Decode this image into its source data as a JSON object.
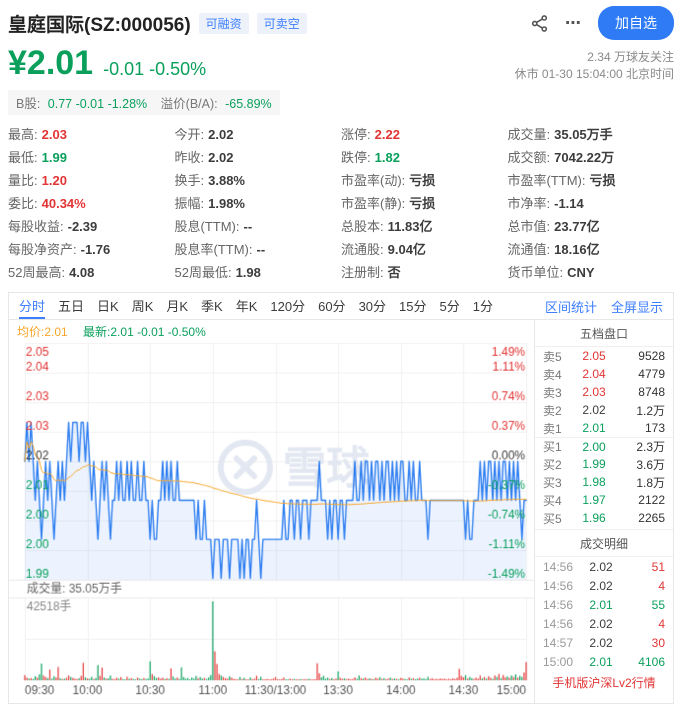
{
  "colors": {
    "up": "#e23434",
    "down": "#0aa05c",
    "flat": "#3c3c3c",
    "accent": "#3d7eff",
    "orange": "#f7a62a",
    "line_blue": "#2c7df0",
    "area_blue": "rgba(44,125,240,0.09)",
    "grid": "#f1f1f1",
    "text_gray": "#666666",
    "text_light": "#8a8a8a",
    "watermark": "#e2e7f1"
  },
  "header": {
    "title": "皇庭国际(SZ:000056)",
    "badges": [
      "可融资",
      "可卖空"
    ],
    "share_icon": "share-icon",
    "more_icon": "⋯",
    "follow_button": "加自选"
  },
  "price_block": {
    "price": "¥2.01",
    "change": "-0.01 -0.50%",
    "followers": "2.34 万球友关注",
    "status_line": "休市 01-30 15:04:00 北京时间"
  },
  "b_share": {
    "label": "B股:",
    "values": "0.77  -0.01  -1.28%",
    "premium_label": "溢价(B/A):",
    "premium_value": "-65.89%"
  },
  "stats": {
    "columns": [
      [
        {
          "label": "最高:",
          "value": "2.03",
          "c": "up"
        },
        {
          "label": "最低:",
          "value": "1.99",
          "c": "down"
        },
        {
          "label": "量比:",
          "value": "1.20",
          "c": "up"
        },
        {
          "label": "委比:",
          "value": "40.34%",
          "c": "up"
        },
        {
          "label": "每股收益:",
          "value": "-2.39",
          "c": "flat"
        },
        {
          "label": "每股净资产:",
          "value": "-1.76",
          "c": "flat"
        },
        {
          "label": "52周最高:",
          "value": "4.08",
          "c": "flat"
        }
      ],
      [
        {
          "label": "今开:",
          "value": "2.02",
          "c": "flat"
        },
        {
          "label": "昨收:",
          "value": "2.02",
          "c": "flat"
        },
        {
          "label": "换手:",
          "value": "3.88%",
          "c": "flat"
        },
        {
          "label": "振幅:",
          "value": "1.98%",
          "c": "flat"
        },
        {
          "label": "股息(TTM):",
          "value": "--",
          "c": "flat"
        },
        {
          "label": "股息率(TTM):",
          "value": "--",
          "c": "flat"
        },
        {
          "label": "52周最低:",
          "value": "1.98",
          "c": "flat"
        }
      ],
      [
        {
          "label": "涨停:",
          "value": "2.22",
          "c": "up"
        },
        {
          "label": "跌停:",
          "value": "1.82",
          "c": "down"
        },
        {
          "label": "市盈率(动):",
          "value": "亏损",
          "c": "flat"
        },
        {
          "label": "市盈率(静):",
          "value": "亏损",
          "c": "flat"
        },
        {
          "label": "总股本:",
          "value": "11.83亿",
          "c": "flat"
        },
        {
          "label": "流通股:",
          "value": "9.04亿",
          "c": "flat"
        },
        {
          "label": "注册制:",
          "value": "否",
          "c": "flat"
        }
      ],
      [
        {
          "label": "成交量:",
          "value": "35.05万手",
          "c": "flat"
        },
        {
          "label": "成交额:",
          "value": "7042.22万",
          "c": "flat"
        },
        {
          "label": "市盈率(TTM):",
          "value": "亏损",
          "c": "flat"
        },
        {
          "label": "市净率:",
          "value": "-1.14",
          "c": "flat"
        },
        {
          "label": "总市值:",
          "value": "23.77亿",
          "c": "flat"
        },
        {
          "label": "流通值:",
          "value": "18.16亿",
          "c": "flat"
        },
        {
          "label": "货币单位:",
          "value": "CNY",
          "c": "flat"
        }
      ]
    ]
  },
  "chart_widget": {
    "tabs": [
      "分时",
      "五日",
      "日K",
      "周K",
      "月K",
      "季K",
      "年K",
      "120分",
      "60分",
      "30分",
      "15分",
      "5分",
      "1分"
    ],
    "active_tab": "分时",
    "links": [
      "区间统计",
      "全屏显示"
    ],
    "legend_avg": "均价:2.01",
    "legend_last": "最新:2.01 -0.01 -0.50%"
  },
  "chart_data": {
    "type": "line",
    "title": "分时图 (intraday)",
    "prev_close": 2.02,
    "pct_limit": 0.0149,
    "watermark": "雪球",
    "left_labels": [
      {
        "t": "2.05",
        "c": "up"
      },
      {
        "t": "2.04",
        "c": "up"
      },
      {
        "t": "2.03",
        "c": "up"
      },
      {
        "t": "2.03",
        "c": "up"
      },
      {
        "t": "2.02",
        "c": "flat"
      },
      {
        "t": "2.01",
        "c": "down"
      },
      {
        "t": "2.00",
        "c": "down"
      },
      {
        "t": "2.00",
        "c": "down"
      },
      {
        "t": "1.99",
        "c": "down"
      }
    ],
    "right_labels": [
      {
        "t": "1.49%",
        "c": "up"
      },
      {
        "t": "1.11%",
        "c": "up"
      },
      {
        "t": "0.74%",
        "c": "up"
      },
      {
        "t": "0.37%",
        "c": "up"
      },
      {
        "t": "0.00%",
        "c": "flat"
      },
      {
        "t": "-0.37%",
        "c": "down"
      },
      {
        "t": "-0.74%",
        "c": "down"
      },
      {
        "t": "-1.11%",
        "c": "down"
      },
      {
        "t": "-1.49%",
        "c": "down"
      }
    ],
    "time_labels": [
      {
        "t": "09:30",
        "f": 0
      },
      {
        "t": "10:00",
        "f": 0.125
      },
      {
        "t": "10:30",
        "f": 0.25
      },
      {
        "t": "11:00",
        "f": 0.375
      },
      {
        "t": "11:30/13:00",
        "f": 0.5
      },
      {
        "t": "13:30",
        "f": 0.625
      },
      {
        "t": "14:00",
        "f": 0.75
      },
      {
        "t": "14:30",
        "f": 0.875
      },
      {
        "t": "15:00",
        "f": 1
      }
    ],
    "vol_title": "成交量: 35.05万手",
    "vol_max": 42518,
    "vol_max_label": "42518手",
    "prices": [
      2.02,
      2.03,
      2.02,
      2.03,
      2.02,
      2.01,
      2.02,
      2.01,
      2.0,
      2.01,
      2.02,
      2.01,
      2.02,
      2.01,
      2.0,
      2.01,
      2.02,
      2.01,
      2.02,
      2.01,
      2.02,
      2.03,
      2.02,
      2.03,
      2.03,
      2.03,
      2.02,
      2.03,
      2.03,
      2.02,
      2.03,
      2.02,
      2.01,
      2.02,
      2.01,
      2.0,
      2.01,
      2.02,
      2.01,
      2.02,
      2.01,
      2.0,
      2.01,
      2.01,
      2.02,
      2.01,
      2.02,
      2.01,
      2.01,
      2.02,
      2.01,
      2.02,
      2.01,
      2.01,
      2.02,
      2.01,
      2.01,
      2.02,
      2.01,
      2.01,
      2.0,
      2.01,
      2.0,
      2.0,
      2.01,
      2.01,
      2.02,
      2.01,
      2.02,
      2.01,
      2.02,
      2.01,
      2.01,
      2.02,
      2.01,
      2.01,
      2.01,
      2.01,
      2.01,
      2.01,
      2.01,
      2.01,
      2.0,
      2.01,
      2.0,
      2.0,
      2.01,
      2.0,
      2.0,
      2.0,
      1.99,
      2.0,
      2.0,
      2.0,
      1.99,
      2.0,
      2.0,
      2.0,
      1.99,
      2.0,
      2.0,
      2.0,
      2.0,
      1.99,
      2.0,
      1.99,
      2.0,
      2.0,
      1.99,
      2.0,
      2.0,
      2.01,
      2.0,
      1.99,
      2.0,
      2.0,
      2.0,
      2.0,
      2.0,
      2.0,
      2.0,
      2.0,
      2.0,
      2.0,
      2.01,
      2.0,
      2.0,
      2.01,
      2.01,
      2.0,
      2.01,
      2.01,
      2.0,
      2.01,
      2.01,
      2.01,
      2.0,
      2.01,
      2.01,
      2.01,
      2.01,
      2.02,
      2.01,
      2.01,
      2.01,
      2.0,
      2.01,
      2.0,
      2.01,
      2.01,
      2.0,
      2.01,
      2.01,
      2.0,
      2.01,
      2.01,
      2.01,
      2.01,
      2.02,
      2.01,
      2.01,
      2.02,
      2.01,
      2.02,
      2.02,
      2.01,
      2.02,
      2.01,
      2.02,
      2.02,
      2.01,
      2.02,
      2.01,
      2.02,
      2.02,
      2.01,
      2.02,
      2.01,
      2.02,
      2.01,
      2.02,
      2.02,
      2.01,
      2.01,
      2.02,
      2.01,
      2.02,
      2.01,
      2.01,
      2.02,
      2.01,
      2.01,
      2.01,
      2.0,
      2.01,
      2.01,
      2.01,
      2.01,
      2.01,
      2.01,
      2.01,
      2.01,
      2.01,
      2.01,
      2.01,
      2.01,
      2.01,
      2.01,
      2.01,
      2.01,
      2.01,
      2.0,
      2.01,
      2.0,
      2.0,
      2.01,
      2.01,
      2.01,
      2.02,
      2.01,
      2.02,
      2.01,
      2.02,
      2.02,
      2.01,
      2.02,
      2.01,
      2.02,
      2.01,
      2.02,
      2.02,
      2.01,
      2.02,
      2.01,
      2.02,
      2.01,
      2.02,
      2.01,
      2.0,
      2.01,
      2.01
    ],
    "volumes": [
      2800,
      1500,
      900,
      1200,
      800,
      2200,
      1500,
      3200,
      9000,
      2500,
      1800,
      1200,
      5800,
      900,
      2200,
      1500,
      7200,
      1100,
      700,
      900,
      1400,
      2600,
      1800,
      1300,
      900,
      700,
      1100,
      2400,
      9400,
      1600,
      1000,
      800,
      1900,
      700,
      1200,
      8200,
      2400,
      6800,
      1500,
      900,
      1100,
      2600,
      800,
      600,
      1400,
      900,
      1700,
      600,
      500,
      1900,
      800,
      1200,
      700,
      500,
      1500,
      900,
      600,
      1300,
      700,
      1000,
      10200,
      3400,
      2300,
      1200,
      1600,
      900,
      1400,
      700,
      1100,
      800,
      6400,
      2100,
      900,
      1500,
      700,
      7000,
      1800,
      900,
      1200,
      600,
      1500,
      900,
      2400,
      1100,
      1800,
      900,
      1300,
      700,
      1600,
      2800,
      42518,
      15600,
      8800,
      3400,
      2600,
      1800,
      1200,
      900,
      2200,
      1400,
      800,
      600,
      500,
      1800,
      700,
      1300,
      500,
      400,
      1600,
      600,
      900,
      2400,
      700,
      1900,
      500,
      400,
      800,
      300,
      600,
      900,
      1800,
      600,
      400,
      700,
      1500,
      500,
      400,
      900,
      600,
      800,
      500,
      400,
      700,
      500,
      600,
      400,
      900,
      500,
      400,
      600,
      9200,
      3800,
      1600,
      2400,
      900,
      1500,
      700,
      1200,
      600,
      900,
      4800,
      1400,
      800,
      1100,
      600,
      900,
      500,
      700,
      1600,
      800,
      2600,
      1200,
      900,
      1500,
      700,
      1100,
      800,
      600,
      1400,
      900,
      1700,
      800,
      1200,
      600,
      900,
      1500,
      700,
      1100,
      800,
      600,
      1300,
      900,
      700,
      500,
      1600,
      800,
      1200,
      600,
      900,
      1400,
      800,
      1100,
      600,
      1900,
      700,
      1200,
      500,
      800,
      600,
      1000,
      700,
      900,
      500,
      800,
      600,
      1100,
      700,
      1400,
      6200,
      2400,
      1600,
      2800,
      900,
      1800,
      1200,
      700,
      1500,
      900,
      2600,
      1100,
      1800,
      900,
      2200,
      1400,
      800,
      2600,
      1800,
      3400,
      1200,
      2800,
      1600,
      2100,
      1400,
      2600,
      1800,
      3200,
      1500,
      2400,
      1800,
      4200,
      9800
    ]
  },
  "order_book": {
    "title": "五档盘口",
    "rows": [
      {
        "label": "卖5",
        "price": "2.05",
        "pc": "up",
        "amount": "9528"
      },
      {
        "label": "卖4",
        "price": "2.04",
        "pc": "up",
        "amount": "4779"
      },
      {
        "label": "卖3",
        "price": "2.03",
        "pc": "up",
        "amount": "8748"
      },
      {
        "label": "卖2",
        "price": "2.02",
        "pc": "flat",
        "amount": "1.2万"
      },
      {
        "label": "卖1",
        "price": "2.01",
        "pc": "down",
        "amount": "173"
      },
      {
        "label": "买1",
        "price": "2.00",
        "pc": "down",
        "amount": "2.3万",
        "sep": true
      },
      {
        "label": "买2",
        "price": "1.99",
        "pc": "down",
        "amount": "3.6万"
      },
      {
        "label": "买3",
        "price": "1.98",
        "pc": "down",
        "amount": "1.8万"
      },
      {
        "label": "买4",
        "price": "1.97",
        "pc": "down",
        "amount": "2122"
      },
      {
        "label": "买5",
        "price": "1.96",
        "pc": "down",
        "amount": "2265"
      }
    ]
  },
  "trades": {
    "title": "成交明细",
    "rows": [
      {
        "time": "14:56",
        "price": "2.02",
        "pc": "flat",
        "amount": "51",
        "ac": "up"
      },
      {
        "time": "14:56",
        "price": "2.02",
        "pc": "flat",
        "amount": "4",
        "ac": "up"
      },
      {
        "time": "14:56",
        "price": "2.01",
        "pc": "down",
        "amount": "55",
        "ac": "down"
      },
      {
        "time": "14:56",
        "price": "2.02",
        "pc": "flat",
        "amount": "4",
        "ac": "up"
      },
      {
        "time": "14:57",
        "price": "2.02",
        "pc": "flat",
        "amount": "30",
        "ac": "up"
      },
      {
        "time": "15:00",
        "price": "2.01",
        "pc": "down",
        "amount": "4106",
        "ac": "down"
      }
    ],
    "lv2_link": "手机版沪深Lv2行情"
  }
}
